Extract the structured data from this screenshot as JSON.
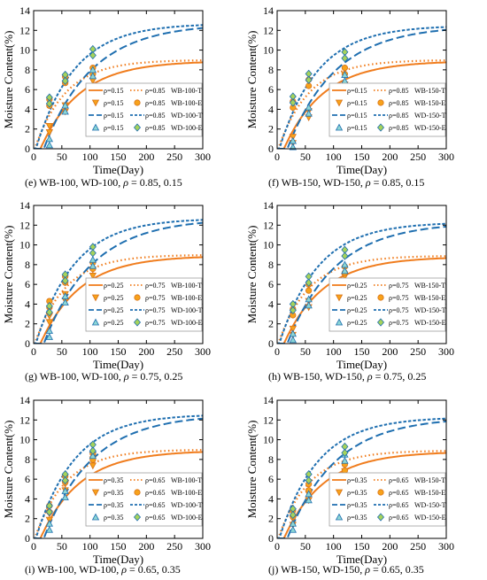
{
  "chart_data": [
    {
      "id": "e",
      "type": "line",
      "caption": {
        "prefix": "(e) WB-100, WD-100, ",
        "rho": "ρ",
        "suffix": " = 0.85, 0.15"
      },
      "xlabel": "Time(Day)",
      "ylabel": "Moisture Content(%)",
      "xlim": [
        0,
        300
      ],
      "ylim": [
        0,
        14
      ],
      "xticks": [
        0,
        50,
        100,
        150,
        200,
        250,
        300
      ],
      "yticks": [
        0,
        2,
        4,
        6,
        8,
        10,
        12,
        14
      ],
      "legend_location": "lower-right",
      "legend": [
        [
          "ρ=0.15",
          "ρ=0.85",
          "WB-100-T"
        ],
        [
          "ρ=0.15",
          "ρ=0.85",
          "WB-100-E"
        ],
        [
          "ρ=0.15",
          "ρ=0.85",
          "WD-100-T"
        ],
        [
          "ρ=0.15",
          "ρ=0.85",
          "WD-100-E"
        ]
      ],
      "theory_asymptotes": {
        "WB-T": 8.9,
        "WD-T": 12.7
      },
      "experimental": {
        "x": [
          28,
          56,
          105
        ],
        "WB_rho_low": [
          2.3,
          4.4,
          6.9
        ],
        "WB_rho_high": [
          5.0,
          7.3,
          8.2
        ],
        "WD_rho_low": [
          1.0,
          4.4,
          8.0
        ],
        "WD_rho_high": [
          5.2,
          7.5,
          10.1
        ]
      }
    },
    {
      "id": "f",
      "type": "line",
      "caption": {
        "prefix": "(f) WB-150, WD-150, ",
        "rho": "ρ",
        "suffix": " = 0.85, 0.15"
      },
      "xlabel": "Time(Day)",
      "ylabel": "Moisture Content(%)",
      "xlim": [
        0,
        300
      ],
      "ylim": [
        0,
        14
      ],
      "xticks": [
        0,
        50,
        100,
        150,
        200,
        250,
        300
      ],
      "yticks": [
        0,
        2,
        4,
        6,
        8,
        10,
        12,
        14
      ],
      "legend_location": "lower-right",
      "legend": [
        [
          "ρ=0.15",
          "ρ=0.85",
          "WB-150-T"
        ],
        [
          "ρ=0.15",
          "ρ=0.85",
          "WB-150-E"
        ],
        [
          "ρ=0.15",
          "ρ=0.85",
          "WD-150-T"
        ],
        [
          "ρ=0.15",
          "ρ=0.85",
          "WD-150-E"
        ]
      ],
      "theory_asymptotes": {
        "WB-T": 8.9,
        "WD-T": 12.5
      },
      "experimental": {
        "x": [
          28,
          56,
          120
        ],
        "WB_rho_low": [
          1.2,
          3.8,
          6.5
        ],
        "WB_rho_high": [
          4.8,
          7.0,
          8.2
        ],
        "WD_rho_low": [
          0.8,
          4.2,
          7.5
        ],
        "WD_rho_high": [
          5.3,
          7.6,
          9.8
        ]
      }
    },
    {
      "id": "g",
      "type": "line",
      "caption": {
        "prefix": "(g) WB-100, WD-100, ",
        "rho": "ρ",
        "suffix": " = 0.75, 0.25"
      },
      "xlabel": "Time(Day)",
      "ylabel": "Moisture Content(%)",
      "xlim": [
        0,
        300
      ],
      "ylim": [
        0,
        14
      ],
      "xticks": [
        0,
        50,
        100,
        150,
        200,
        250,
        300
      ],
      "yticks": [
        0,
        2,
        4,
        6,
        8,
        10,
        12,
        14
      ],
      "legend_location": "lower-right",
      "legend": [
        [
          "ρ=0.25",
          "ρ=0.75",
          "WB-100-T"
        ],
        [
          "ρ=0.25",
          "ρ=0.75",
          "WB-100-E"
        ],
        [
          "ρ=0.25",
          "ρ=0.75",
          "WD-100-T"
        ],
        [
          "ρ=0.25",
          "ρ=0.75",
          "WD-100-E"
        ]
      ],
      "theory_asymptotes": {
        "WB-T": 8.9,
        "WD-T": 12.7
      },
      "experimental": {
        "x": [
          28,
          56,
          105
        ],
        "WB_rho_low": [
          2.8,
          5.0,
          7.5
        ],
        "WB_rho_high": [
          4.3,
          6.8,
          8.2
        ],
        "WD_rho_low": [
          1.3,
          4.8,
          8.5
        ],
        "WD_rho_high": [
          3.8,
          7.0,
          9.8
        ]
      }
    },
    {
      "id": "h",
      "type": "line",
      "caption": {
        "prefix": "(h) WB-150, WD-150, ",
        "rho": "ρ",
        "suffix": " = 0.75, 0.25"
      },
      "xlabel": "Time(Day)",
      "ylabel": "Moisture Content(%)",
      "xlim": [
        0,
        300
      ],
      "ylim": [
        0,
        14
      ],
      "xticks": [
        0,
        50,
        100,
        150,
        200,
        250,
        300
      ],
      "yticks": [
        0,
        2,
        4,
        6,
        8,
        10,
        12,
        14
      ],
      "legend_location": "lower-right",
      "legend": [
        [
          "ρ=0.25",
          "ρ=0.75",
          "WB-150-T"
        ],
        [
          "ρ=0.25",
          "ρ=0.75",
          "WB-150-E"
        ],
        [
          "ρ=0.25",
          "ρ=0.75",
          "WD-150-T"
        ],
        [
          "ρ=0.25",
          "ρ=0.75",
          "WD-150-E"
        ]
      ],
      "theory_asymptotes": {
        "WB-T": 8.8,
        "WD-T": 12.3
      },
      "experimental": {
        "x": [
          28,
          56,
          120
        ],
        "WB_rho_low": [
          1.5,
          4.3,
          6.8
        ],
        "WB_rho_high": [
          3.5,
          6.0,
          7.8
        ],
        "WD_rho_low": [
          1.0,
          4.5,
          8.0
        ],
        "WD_rho_high": [
          4.0,
          6.8,
          9.5
        ]
      }
    },
    {
      "id": "i",
      "type": "line",
      "caption": {
        "prefix": "(i) WB-100, WD-100, ",
        "rho": "ρ",
        "suffix": " = 0.65, 0.35"
      },
      "xlabel": "Time(Day)",
      "ylabel": "Moisture Content(%)",
      "xlim": [
        0,
        300
      ],
      "ylim": [
        0,
        14
      ],
      "xticks": [
        0,
        50,
        100,
        150,
        200,
        250,
        300
      ],
      "yticks": [
        0,
        2,
        4,
        6,
        8,
        10,
        12,
        14
      ],
      "legend_location": "lower-right",
      "legend": [
        [
          "ρ=0.35",
          "ρ=0.65",
          "WB-100-T"
        ],
        [
          "ρ=0.35",
          "ρ=0.65",
          "WB-100-E"
        ],
        [
          "ρ=0.35",
          "ρ=0.65",
          "WD-100-T"
        ],
        [
          "ρ=0.35",
          "ρ=0.65",
          "WD-100-E"
        ]
      ],
      "theory_asymptotes": {
        "WB-T": 8.9,
        "WD-T": 12.6
      },
      "experimental": {
        "x": [
          28,
          56,
          105
        ],
        "WB_rho_low": [
          2.5,
          5.5,
          8.0
        ],
        "WB_rho_high": [
          3.3,
          6.3,
          8.6
        ],
        "WD_rho_low": [
          1.5,
          4.8,
          9.0
        ],
        "WD_rho_high": [
          3.3,
          6.5,
          9.5
        ]
      }
    },
    {
      "id": "j",
      "type": "line",
      "caption": {
        "prefix": "(j) WB-150, WD-150, ",
        "rho": "ρ",
        "suffix": " = 0.65, 0.35"
      },
      "xlabel": "Time(Day)",
      "ylabel": "Moisture Content(%)",
      "xlim": [
        0,
        300
      ],
      "ylim": [
        0,
        14
      ],
      "xticks": [
        0,
        50,
        100,
        150,
        200,
        250,
        300
      ],
      "yticks": [
        0,
        2,
        4,
        6,
        8,
        10,
        12,
        14
      ],
      "legend_location": "lower-right",
      "legend": [
        [
          "ρ=0.35",
          "ρ=0.65",
          "WB-150-T"
        ],
        [
          "ρ=0.35",
          "ρ=0.65",
          "WB-150-E"
        ],
        [
          "ρ=0.35",
          "ρ=0.65",
          "WD-150-T"
        ],
        [
          "ρ=0.35",
          "ρ=0.65",
          "WD-150-E"
        ]
      ],
      "theory_asymptotes": {
        "WB-T": 8.8,
        "WD-T": 12.3
      },
      "experimental": {
        "x": [
          28,
          56,
          120
        ],
        "WB_rho_low": [
          2.0,
          4.5,
          6.8
        ],
        "WB_rho_high": [
          2.8,
          5.5,
          7.5
        ],
        "WD_rho_low": [
          1.5,
          4.5,
          8.5
        ],
        "WD_rho_high": [
          3.0,
          6.5,
          9.3
        ]
      }
    }
  ],
  "colors": {
    "wb_theory": "#f07d1e",
    "wd_theory": "#1f6fb0",
    "wb_marker_fill": "#f7a21b",
    "wb_marker_edge": "#d9731a",
    "wd_tri_fill": "#8dd7d5",
    "wd_diamond_fill": "#a6d35a",
    "wd_marker_edge": "#1f6fb0",
    "legend_border": "#9e9e9e"
  }
}
